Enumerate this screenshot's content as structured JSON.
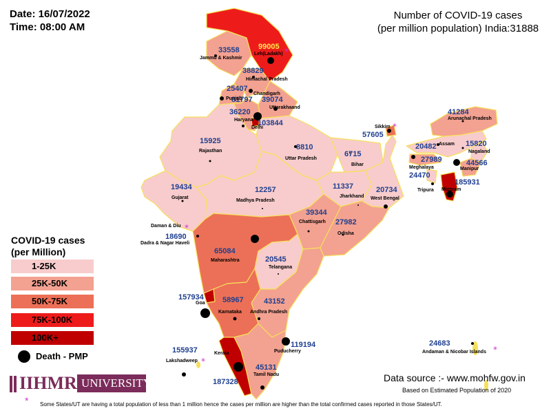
{
  "header": {
    "date": "Date: 16/07/2022",
    "time": "Time: 08:00 AM",
    "title_line1": "Number of COVID-19 cases",
    "title_line2": "(per million population) India:31888"
  },
  "colors": {
    "band_1_25k": "#f8cccc",
    "band_25k_50k": "#f3a191",
    "band_50k_75k": "#ec7057",
    "band_75k_100k": "#ee1b1b",
    "band_100k_plus": "#c00000",
    "border": "#f6e05a",
    "value_text": "#1f3f8f"
  },
  "legend": {
    "title_line1": "COVID-19 cases",
    "title_line2": "(per Million)",
    "items": [
      {
        "label": "1-25K"
      },
      {
        "label": "25K-50K"
      },
      {
        "label": "50K-75K"
      },
      {
        "label": "75K-100K"
      },
      {
        "label": "100K+"
      }
    ],
    "death_label": "Death - PMP"
  },
  "regions": {
    "ladakh": {
      "name": "Leh(Ladakh)",
      "value": "99005"
    },
    "jk": {
      "name": "Jammu & Kashmir",
      "value": "33558"
    },
    "hp": {
      "name": "Himachal Pradesh",
      "value": "38829"
    },
    "chandigarh": {
      "name": "Chandigarh",
      "value": "81797"
    },
    "punjab": {
      "name": "Punjab",
      "value": "25407"
    },
    "uttarakhand": {
      "name": "Uttarakhaand",
      "value": "39074"
    },
    "haryana": {
      "name": "Haryana",
      "value": "36220"
    },
    "delhi": {
      "name": "Delhi",
      "value": "103844"
    },
    "rajasthan": {
      "name": "Rajasthan",
      "value": "15925"
    },
    "up": {
      "name": "Uttar Pradesh",
      "value": "8810"
    },
    "bihar": {
      "name": "Bihar",
      "value": "6715"
    },
    "sikkim": {
      "name": "Sikkim",
      "value": "57605"
    },
    "arunachal": {
      "name": "Arunachal Pradesh",
      "value": "41284"
    },
    "assam": {
      "name": "Assam",
      "value": "20482"
    },
    "nagaland": {
      "name": "Nagaland",
      "value": "15820"
    },
    "meghalaya": {
      "name": "Meghalaya",
      "value": "27989"
    },
    "manipur": {
      "name": "Manipur",
      "value": "44566"
    },
    "tripura": {
      "name": "Tripura",
      "value": "24470"
    },
    "mizoram": {
      "name": "Mizoram",
      "value": "185931"
    },
    "gujarat": {
      "name": "Gujarat",
      "value": "19434"
    },
    "mp": {
      "name": "Madhya Pradesh",
      "value": "12257"
    },
    "jharkhand": {
      "name": "Jharkhand",
      "value": "11337"
    },
    "wb": {
      "name": "West Bengal",
      "value": "20734"
    },
    "daman": {
      "name": "Daman & Diu",
      "value": ""
    },
    "dnh": {
      "name": "Dadra & Nagar Haveli",
      "value": "18690"
    },
    "chhattisgarh": {
      "name": "Chattisgarh",
      "value": "39344"
    },
    "odisha": {
      "name": "Odisha",
      "value": "27982"
    },
    "maharashtra": {
      "name": "Maharashtra",
      "value": "65084"
    },
    "telangana": {
      "name": "Telangana",
      "value": "20545"
    },
    "goa": {
      "name": "Goa",
      "value": "157934"
    },
    "karnataka": {
      "name": "Karnataka",
      "value": "58967"
    },
    "ap": {
      "name": "Andhra Pradesh",
      "value": "43152"
    },
    "puducherry": {
      "name": "Puducherry",
      "value": "119194"
    },
    "lakshadweep": {
      "name": "Lakshadweep",
      "value": "155937"
    },
    "kerala": {
      "name": "Kerala",
      "value": "187328"
    },
    "tn": {
      "name": "Tamil Nadu",
      "value": "45131"
    },
    "andaman": {
      "name": "Andaman & Nicobar Islands",
      "value": "24683"
    }
  },
  "logo": {
    "text": "IIHMR",
    "suffix": "UNIVERSITY"
  },
  "source": {
    "line1": "Data source :- www.mohfw.gov.in",
    "line2": "Based on Estimated Population of 2020"
  },
  "footnote": "Some States/UT are having a total population of less than 1 million hence the cases per million are higher than the total confirmed cases reported in those States/UT."
}
